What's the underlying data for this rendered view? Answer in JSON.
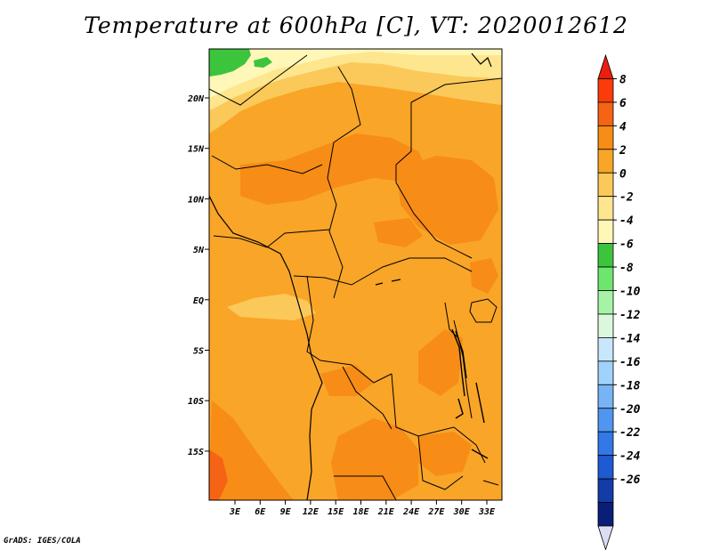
{
  "title": "Temperature at 600hPa [C], VT: 2020012612",
  "credit": "GrADS: IGES/COLA",
  "map": {
    "lat_labels": [
      "20N",
      "15N",
      "10N",
      "5N",
      "EQ",
      "5S",
      "10S",
      "15S"
    ],
    "lon_labels": [
      "3E",
      "6E",
      "9E",
      "12E",
      "15E",
      "18E",
      "21E",
      "24E",
      "27E",
      "30E",
      "33E"
    ]
  },
  "colorbar": {
    "levels": [
      "8",
      "6",
      "4",
      "2",
      "0",
      "-2",
      "-4",
      "-6",
      "-8",
      "-10",
      "-12",
      "-14",
      "-16",
      "-18",
      "-20",
      "-22",
      "-24",
      "-26"
    ],
    "colors": [
      "#e81e0e",
      "#fa3c0a",
      "#f56415",
      "#f78c16",
      "#f9a528",
      "#fbc95a",
      "#fde68e",
      "#fef7b8",
      "#3cc43c",
      "#6ee66e",
      "#a6f2a6",
      "#dcf8dc",
      "#c8e6fc",
      "#a0d2fa",
      "#78b4f5",
      "#5096ef",
      "#3278e6",
      "#1e5ad2",
      "#143ca8",
      "#0a1e78",
      "#dcdcf5"
    ]
  }
}
